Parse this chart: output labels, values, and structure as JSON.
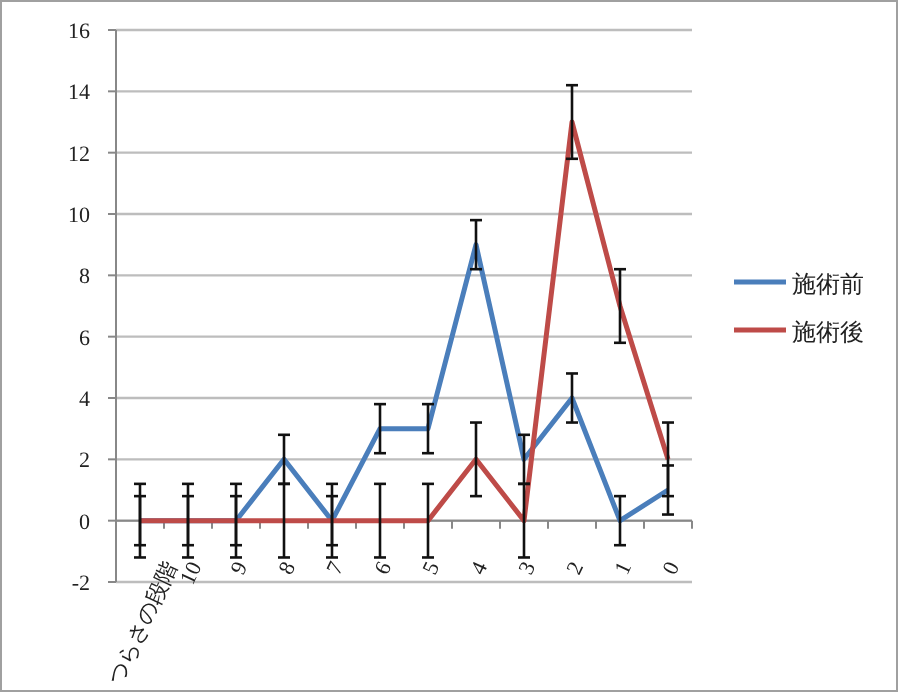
{
  "chart_data": {
    "type": "line",
    "categories": [
      "つらさの段階",
      "10",
      "9",
      "8",
      "7",
      "6",
      "5",
      "4",
      "3",
      "2",
      "1",
      "0"
    ],
    "series": [
      {
        "name": "施術前",
        "color": "#4a7ebb",
        "values": [
          0,
          0,
          0,
          2,
          0,
          3,
          3,
          9,
          2,
          4,
          0,
          1
        ],
        "errors": [
          0.8,
          0.8,
          0.8,
          0.8,
          0.8,
          0.8,
          0.8,
          0.8,
          0.8,
          0.8,
          0.8,
          0.8
        ]
      },
      {
        "name": "施術後",
        "color": "#be4b48",
        "values": [
          0,
          0,
          0,
          0,
          0,
          0,
          0,
          2,
          0,
          13,
          7,
          2
        ],
        "errors": [
          1.2,
          1.2,
          1.2,
          1.2,
          1.2,
          1.2,
          1.2,
          1.2,
          1.2,
          1.2,
          1.2,
          1.2
        ]
      }
    ],
    "ylim": [
      -2,
      16
    ],
    "yticks": [
      -2,
      0,
      2,
      4,
      6,
      8,
      10,
      12,
      14,
      16
    ],
    "grid": "y",
    "legend": "right",
    "marker": "none",
    "line_style": "solid"
  }
}
